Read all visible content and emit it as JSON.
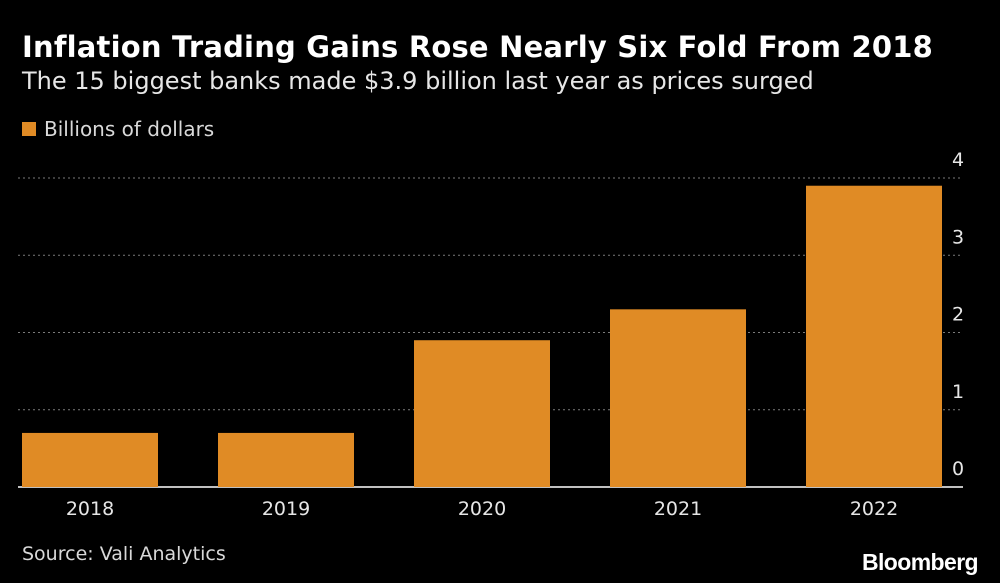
{
  "header": {
    "title": "Inflation Trading Gains Rose Nearly Six Fold From 2018",
    "subtitle": "The 15 biggest banks made $3.9 billion last year as prices surged"
  },
  "legend": {
    "label": "Billions of dollars"
  },
  "footer": {
    "source": "Source: Vali Analytics",
    "brand": "Bloomberg"
  },
  "colors": {
    "bar": "#E08B25",
    "grid": "#7a7a7a",
    "axis": "#ffffff",
    "tick_text": "#e6e6e6"
  },
  "chart_data": {
    "type": "bar",
    "categories": [
      "2018",
      "2019",
      "2020",
      "2021",
      "2022"
    ],
    "values": [
      0.7,
      0.7,
      1.9,
      2.3,
      3.9
    ],
    "ylim": [
      0,
      4
    ],
    "yticks": [
      0,
      1,
      2,
      3,
      4
    ],
    "ylabel": "",
    "xlabel": "",
    "grid": true,
    "y_axis_side": "right",
    "legend_position": "top-left"
  }
}
